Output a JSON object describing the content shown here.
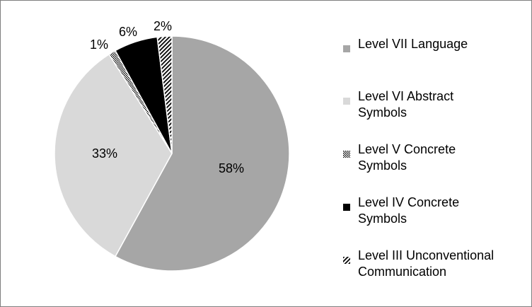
{
  "chart_data": {
    "type": "pie",
    "title": "",
    "start_angle_deg": 0,
    "direction": "clockwise",
    "slices": [
      {
        "label": "Level VII Language",
        "value": 58,
        "data_label": "58%",
        "fill": "#a6a6a6",
        "pattern": "solid"
      },
      {
        "label": "Level VI Abstract Symbols",
        "value": 33,
        "data_label": "33%",
        "fill": "#d9d9d9",
        "pattern": "solid"
      },
      {
        "label": "Level V Concrete Symbols",
        "value": 1,
        "data_label": "1%",
        "fill": "#ffffff",
        "pattern": "dots"
      },
      {
        "label": "Level IV Concrete Symbols",
        "value": 6,
        "data_label": "6%",
        "fill": "#000000",
        "pattern": "solid"
      },
      {
        "label": "Level III Unconventional Communication",
        "value": 2,
        "data_label": "2%",
        "fill": "#ffffff",
        "pattern": "diagonal-stripes"
      }
    ],
    "legend": {
      "position": "right",
      "entries": [
        [
          "Level VII Language"
        ],
        [
          "Level VI Abstract",
          "Symbols"
        ],
        [
          "Level V Concrete",
          "Symbols"
        ],
        [
          "Level IV Concrete",
          "Symbols"
        ],
        [
          "Level III Unconventional",
          "Communication"
        ]
      ]
    }
  }
}
